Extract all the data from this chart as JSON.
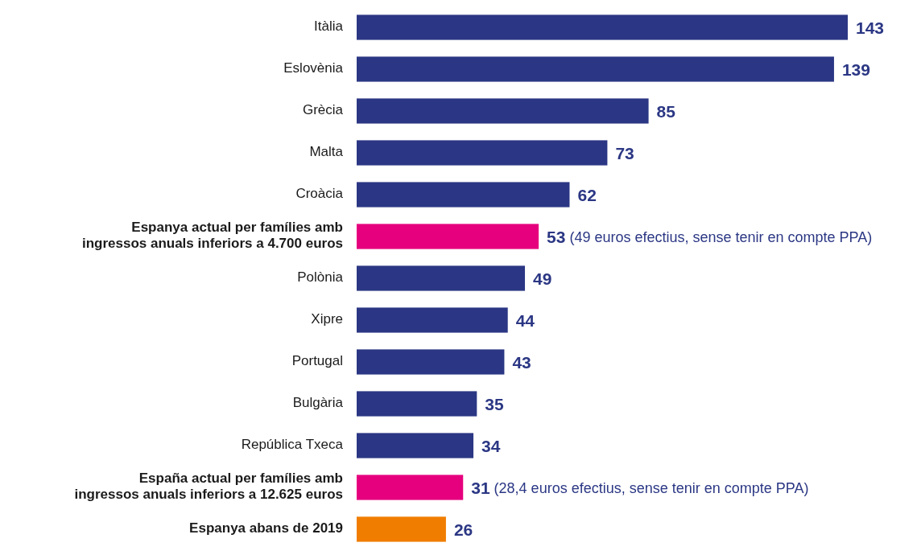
{
  "chart_data": {
    "type": "bar",
    "orientation": "horizontal",
    "categories": [
      "Itàlia",
      "Eslovènia",
      "Grècia",
      "Malta",
      "Croàcia",
      "Espanya actual per famílies amb ingressos anuals inferiors a 4.700 euros",
      "Polònia",
      "Xipre",
      "Portugal",
      "Bulgària",
      "República Txeca",
      "España actual per famílies amb ingressos anuals inferiors a 12.625 euros",
      "Espanya abans de 2019"
    ],
    "values": [
      143,
      139,
      85,
      73,
      62,
      53,
      49,
      44,
      43,
      35,
      34,
      31,
      26
    ],
    "colors": [
      "#2b3784",
      "#2b3784",
      "#2b3784",
      "#2b3784",
      "#2b3784",
      "#e6007e",
      "#2b3784",
      "#2b3784",
      "#2b3784",
      "#2b3784",
      "#2b3784",
      "#e6007e",
      "#f07d00"
    ],
    "value_labels": [
      "143",
      "139",
      "85",
      "73",
      "62",
      "53 (49 euros efectius, sense tenir en compte PPA)",
      "49",
      "44",
      "43",
      "35",
      "34",
      "31 (28,4 euros efectius, sense tenir en compte PPA)",
      "26"
    ]
  }
}
